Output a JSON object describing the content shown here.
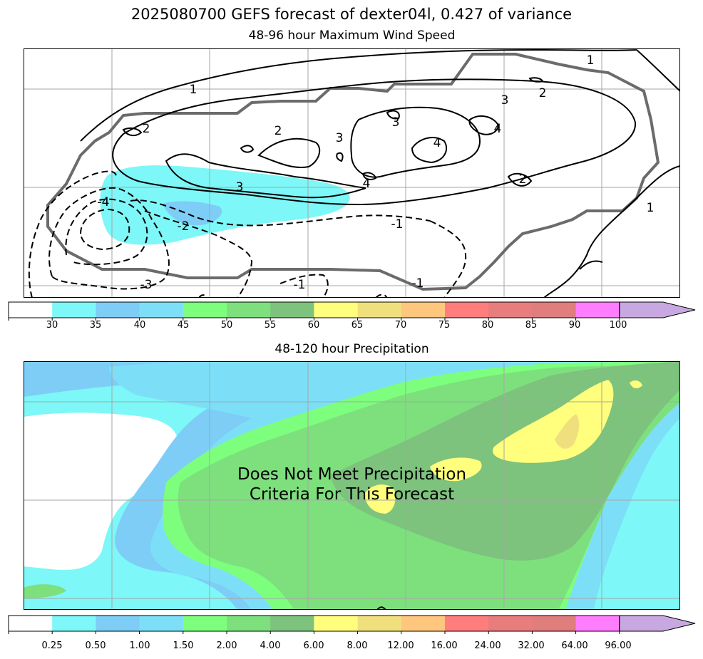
{
  "figure": {
    "suptitle": "2025080700 GEFS forecast of dexter04l, 0.427 of variance"
  },
  "wind_panel": {
    "title": "48-96 hour Maximum Wind Speed",
    "colorbar": {
      "ticks": [
        "30",
        "35",
        "40",
        "45",
        "50",
        "55",
        "60",
        "65",
        "70",
        "75",
        "80",
        "85",
        "90",
        "100"
      ],
      "colors": [
        "#ffffff",
        "#7df7f7",
        "#7dcdf7",
        "#7ddff7",
        "#7dff7d",
        "#7de07d",
        "#7dc27d",
        "#ffff7d",
        "#f0e07d",
        "#ffc67d",
        "#ff7d7d",
        "#e87d7d",
        "#e07d7d",
        "#ff7dff",
        "#c8a8e0"
      ],
      "extend": "max"
    },
    "contour_labels": [
      {
        "text": "1"
      },
      {
        "text": "1"
      },
      {
        "text": "1"
      },
      {
        "text": "2"
      },
      {
        "text": "2"
      },
      {
        "text": "2"
      },
      {
        "text": "2"
      },
      {
        "text": "3"
      },
      {
        "text": "3"
      },
      {
        "text": "3"
      },
      {
        "text": "3"
      },
      {
        "text": "4"
      },
      {
        "text": "4"
      },
      {
        "text": "4"
      },
      {
        "text": "-1"
      },
      {
        "text": "-1"
      },
      {
        "text": "-1"
      },
      {
        "text": "-2"
      },
      {
        "text": "-3"
      },
      {
        "text": "-4"
      }
    ]
  },
  "precip_panel": {
    "title": "48-120 hour Precipitation",
    "message_line1": "Does Not Meet Precipitation",
    "message_line2": "Criteria For This Forecast",
    "colorbar": {
      "ticks": [
        "0.25",
        "0.50",
        "1.00",
        "1.50",
        "2.00",
        "4.00",
        "6.00",
        "8.00",
        "12.00",
        "16.00",
        "24.00",
        "32.00",
        "64.00",
        "96.00"
      ],
      "colors": [
        "#ffffff",
        "#7df7f7",
        "#7dcdf7",
        "#7ddff7",
        "#7dff7d",
        "#7de07d",
        "#7dc27d",
        "#ffff7d",
        "#f0e07d",
        "#ffc67d",
        "#ff7d7d",
        "#e87d7d",
        "#e07d7d",
        "#ff7dff",
        "#c8a8e0"
      ],
      "extend": "max"
    }
  },
  "chart_data": [
    {
      "type": "heatmap",
      "title": "48-96 hour Maximum Wind Speed",
      "colorbar_ticks": [
        30,
        35,
        40,
        45,
        50,
        55,
        60,
        65,
        70,
        75,
        80,
        85,
        90,
        100
      ],
      "contour_levels": [
        -4,
        -3,
        -2,
        -1,
        1,
        2,
        3,
        4
      ],
      "grid": true
    },
    {
      "type": "heatmap",
      "title": "48-120 hour Precipitation",
      "colorbar_ticks": [
        0.25,
        0.5,
        1.0,
        1.5,
        2.0,
        4.0,
        6.0,
        8.0,
        12.0,
        16.0,
        24.0,
        32.0,
        64.0,
        96.0
      ],
      "grid": true
    }
  ]
}
